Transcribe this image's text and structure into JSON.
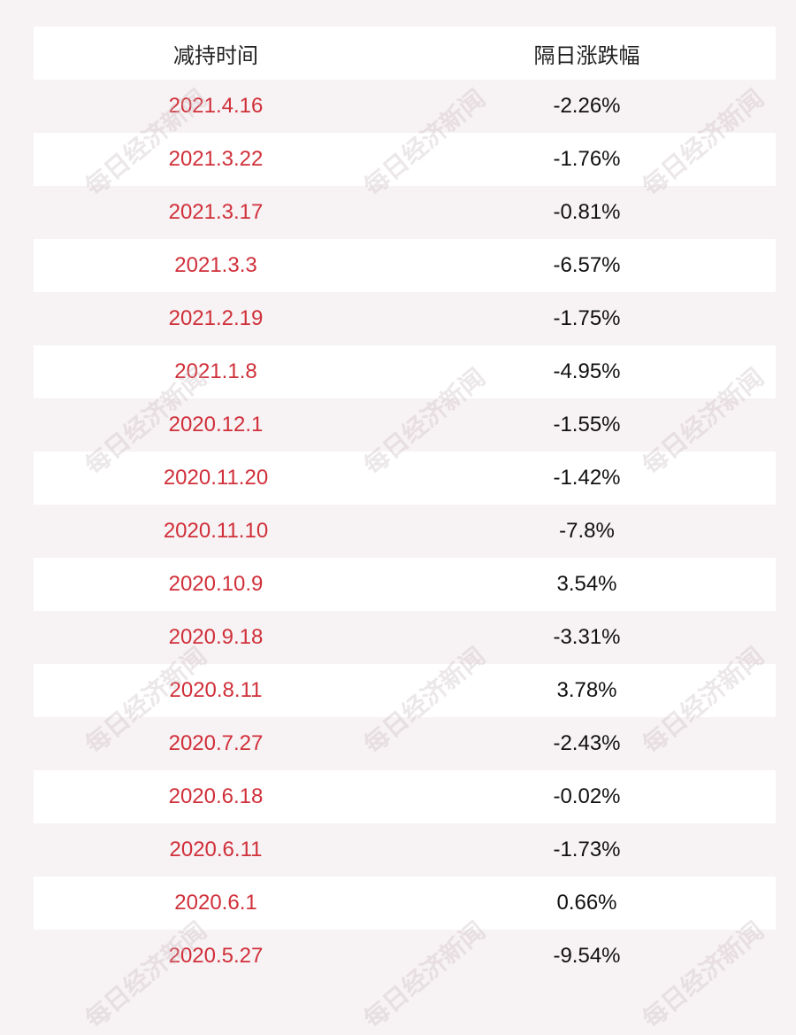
{
  "watermark": "每日经济新闻",
  "table": {
    "header": [
      "减持时间",
      "隔日涨跌幅"
    ],
    "rows": [
      [
        "2021.4.16",
        "-2.26%"
      ],
      [
        "2021.3.22",
        "-1.76%"
      ],
      [
        "2021.3.17",
        "-0.81%"
      ],
      [
        "2021.3.3",
        "-6.57%"
      ],
      [
        "2021.2.19",
        "-1.75%"
      ],
      [
        "2021.1.8",
        "-4.95%"
      ],
      [
        "2020.12.1",
        "-1.55%"
      ],
      [
        "2020.11.20",
        "-1.42%"
      ],
      [
        "2020.11.10",
        "-7.8%"
      ],
      [
        "2020.10.9",
        "3.54%"
      ],
      [
        "2020.9.18",
        "-3.31%"
      ],
      [
        "2020.8.11",
        "3.78%"
      ],
      [
        "2020.7.27",
        "-2.43%"
      ],
      [
        "2020.6.18",
        "-0.02%"
      ],
      [
        "2020.6.11",
        "-1.73%"
      ],
      [
        "2020.6.1",
        "0.66%"
      ],
      [
        "2020.5.27",
        "-9.54%"
      ]
    ]
  }
}
